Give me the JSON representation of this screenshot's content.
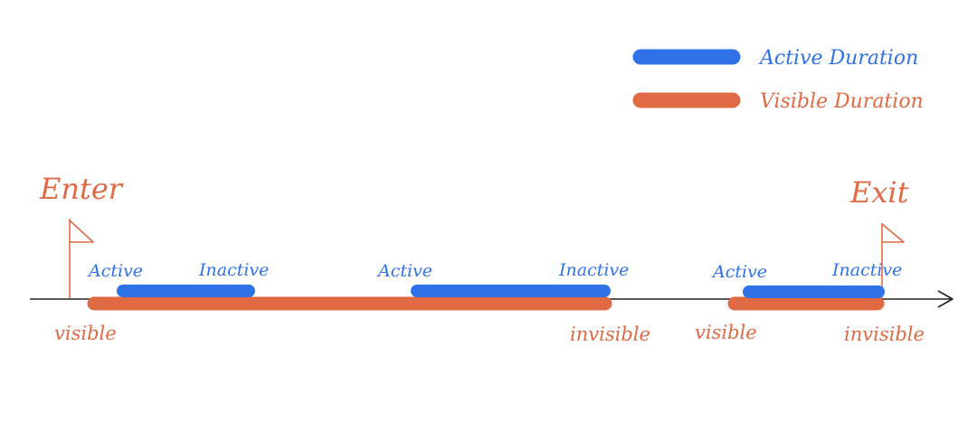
{
  "colors": {
    "active": "#2f72e8",
    "visible": "#df6a44",
    "axis": "#222222"
  },
  "legend": {
    "active_label": "Active Duration",
    "visible_label": "Visible Duration"
  },
  "markers": {
    "enter": "Enter",
    "exit": "Exit"
  },
  "timeline": {
    "segments": [
      {
        "active_label": "Active",
        "inactive_label": "Inactive",
        "visible_label": "visible",
        "invisible_label": ""
      },
      {
        "active_label": "Active",
        "inactive_label": "Inactive",
        "visible_label": "",
        "invisible_label": "invisible"
      },
      {
        "active_label": "Active",
        "inactive_label": "Inactive",
        "visible_label": "visible",
        "invisible_label": "invisible"
      }
    ]
  }
}
